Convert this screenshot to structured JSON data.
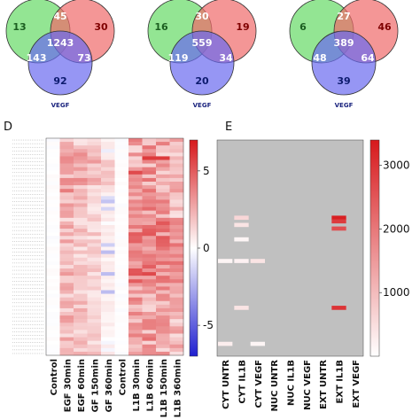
{
  "venns": [
    {
      "values": {
        "green": "13",
        "red": "30",
        "green_red": "45",
        "center": "1243",
        "green_blue": "143",
        "red_blue": "73",
        "blue": "92"
      },
      "label": "VEGF"
    },
    {
      "values": {
        "green": "16",
        "red": "19",
        "green_red": "30",
        "center": "559",
        "green_blue": "119",
        "red_blue": "34",
        "blue": "20"
      },
      "label": "VEGF"
    },
    {
      "values": {
        "green": "6",
        "red": "46",
        "green_red": "27",
        "center": "389",
        "green_blue": "48",
        "red_blue": "64",
        "blue": "39"
      },
      "label": "VEGF"
    }
  ],
  "colors": {
    "venn_green": "#6fdc6f",
    "venn_red": "#f06a6a",
    "venn_blue": "#6a6af0",
    "heat_high": "#d7191c",
    "heat_low": "#2c2cd0",
    "na_gray": "#c0c0c0"
  },
  "chart_data": [
    {
      "type": "heatmap",
      "panel": "D",
      "columns": [
        "Control",
        "EGF 30min",
        "EGF 60min",
        "GF 150min",
        "GF 360min",
        "Control",
        "L1B 30min",
        "L1B 60min",
        "L1B 150min",
        "L1B 360min"
      ],
      "row_count": 60,
      "row_labels_legible": false,
      "colorbar": {
        "ticks": [
          5,
          0,
          -5
        ],
        "tick_labels": [
          "5",
          "0",
          "-5"
        ],
        "range": [
          -7,
          7
        ]
      },
      "note_values": "log fold change: Control columns ~0, treated columns mostly positive (1-5), a few negative in GF 360min"
    },
    {
      "type": "heatmap",
      "panel": "E",
      "columns": [
        "CYT UNTR",
        "CYT IL1B",
        "CYT VEGF",
        "NUC UNTR",
        "NUC IL1B",
        "NUC VEGF",
        "EXT UNTR",
        "EXT IL1B",
        "EXT VEGF"
      ],
      "colorbar": {
        "ticks": [
          3000,
          2000,
          1000
        ],
        "tick_labels": [
          "3000",
          "2000",
          "1000"
        ],
        "range": [
          0,
          3400
        ]
      },
      "background": "gray = no value",
      "highlighted_cells": [
        {
          "col": "CYT IL1B",
          "row": 21,
          "value": 600
        },
        {
          "col": "CYT IL1B",
          "row": 23,
          "value": 400
        },
        {
          "col": "CYT IL1B",
          "row": 27,
          "value": 150
        },
        {
          "col": "CYT UNTR",
          "row": 33,
          "value": 150
        },
        {
          "col": "CYT IL1B",
          "row": 33,
          "value": 200
        },
        {
          "col": "CYT VEGF",
          "row": 33,
          "value": 400
        },
        {
          "col": "CYT IL1B",
          "row": 46,
          "value": 400
        },
        {
          "col": "EXT IL1B",
          "row": 21,
          "value": 3300
        },
        {
          "col": "EXT IL1B",
          "row": 22,
          "value": 2900
        },
        {
          "col": "EXT IL1B",
          "row": 24,
          "value": 2600
        },
        {
          "col": "EXT IL1B",
          "row": 46,
          "value": 3000
        },
        {
          "col": "CYT UNTR",
          "row": 56,
          "value": 250
        },
        {
          "col": "CYT VEGF",
          "row": 56,
          "value": 150
        }
      ]
    }
  ],
  "panels": {
    "d": "D",
    "e": "E"
  }
}
